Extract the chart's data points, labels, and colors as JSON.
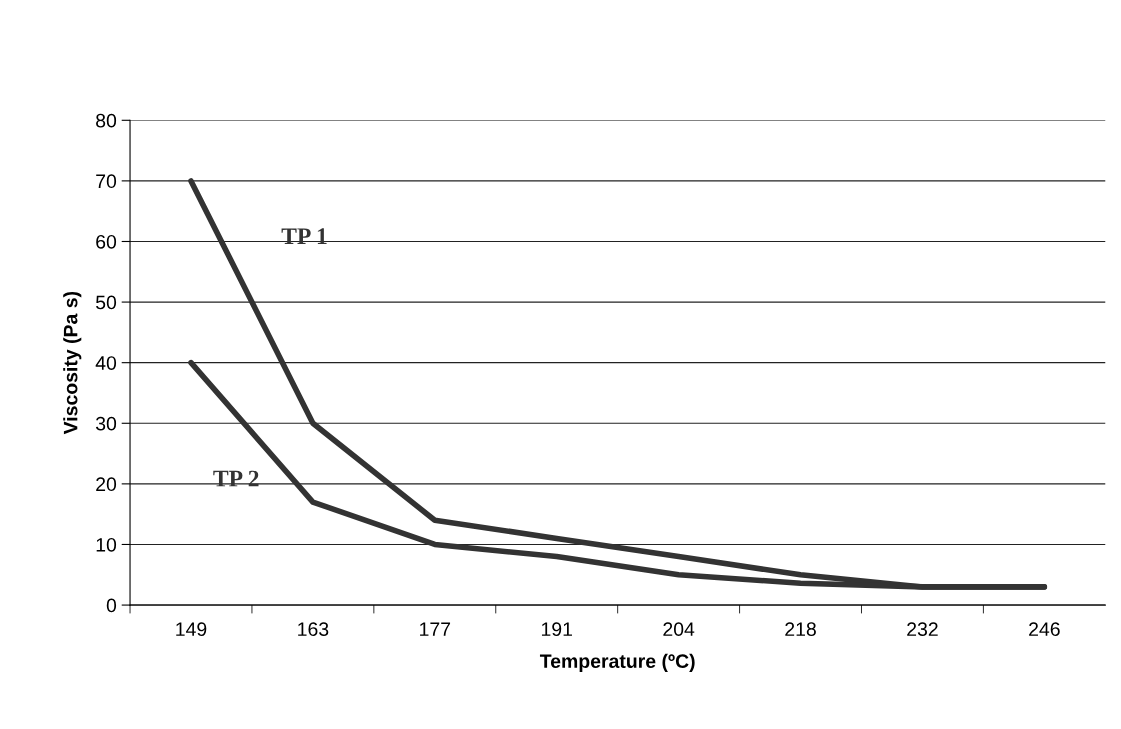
{
  "chart_data": {
    "type": "line",
    "xlabel": "Temperature (ºC)",
    "ylabel": "Viscosity (Pa s)",
    "categories": [
      "149",
      "163",
      "177",
      "191",
      "204",
      "218",
      "232",
      "246"
    ],
    "series": [
      {
        "name": "TP 1",
        "color": "#333333",
        "values": [
          70,
          30,
          14,
          11,
          8,
          5,
          3,
          3
        ]
      },
      {
        "name": "TP 2",
        "color": "#333333",
        "values": [
          40,
          17,
          10,
          8,
          5,
          3.6,
          3,
          3
        ]
      }
    ],
    "ylim": [
      0,
      80
    ],
    "yticks": [
      0,
      10,
      20,
      30,
      40,
      50,
      60,
      70,
      80
    ],
    "grid": "y",
    "legend": false,
    "marker": "none",
    "line_style": "solid"
  }
}
